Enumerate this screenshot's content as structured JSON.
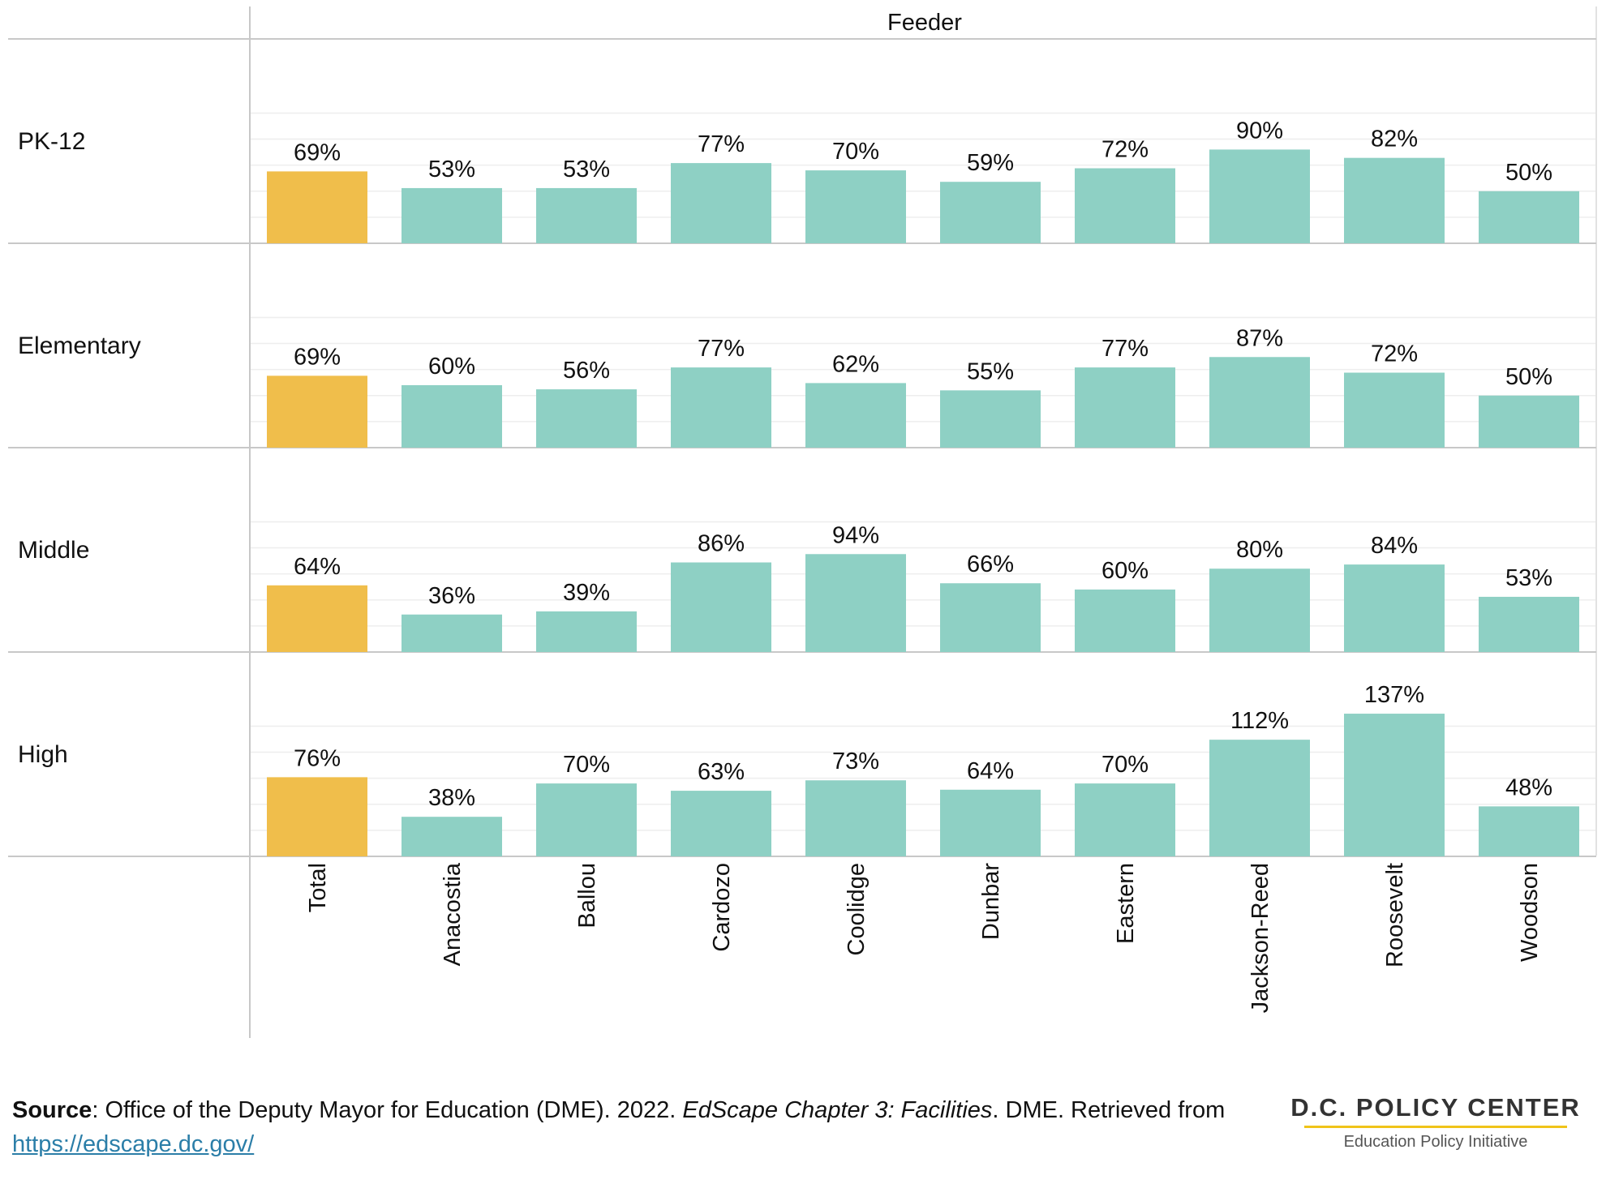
{
  "chart_data": {
    "type": "bar",
    "title": "",
    "column_header": "Feeder",
    "rows": [
      "PK-12",
      "Elementary",
      "Middle",
      "High"
    ],
    "categories": [
      "Total",
      "Anacostia",
      "Ballou",
      "Cardozo",
      "Coolidge",
      "Dunbar",
      "Eastern",
      "Jackson-Reed",
      "Roosevelt",
      "Woodson"
    ],
    "series": [
      {
        "row": "PK-12",
        "values": [
          69,
          53,
          53,
          77,
          70,
          59,
          72,
          90,
          82,
          50
        ]
      },
      {
        "row": "Elementary",
        "values": [
          69,
          60,
          56,
          77,
          62,
          55,
          77,
          87,
          72,
          50
        ]
      },
      {
        "row": "Middle",
        "values": [
          64,
          36,
          39,
          86,
          94,
          66,
          60,
          80,
          84,
          53
        ]
      },
      {
        "row": "High",
        "values": [
          76,
          38,
          70,
          63,
          73,
          64,
          70,
          112,
          137,
          48
        ]
      }
    ],
    "value_suffix": "%",
    "ylim": [
      0,
      150
    ],
    "grid": true,
    "legend": "none",
    "colors": {
      "total": "#f0be4b",
      "feeder": "#8ed0c4"
    }
  },
  "source": {
    "label": "Source",
    "text_1": ": Office of the Deputy Mayor for Education (DME). 2022. ",
    "title_italic": "EdScape Chapter 3: Facilities",
    "text_2": ". DME. Retrieved from ",
    "link": "https://edscape.dc.gov/"
  },
  "logo": {
    "main": "D.C. POLICY CENTER",
    "sub": "Education Policy Initiative"
  }
}
